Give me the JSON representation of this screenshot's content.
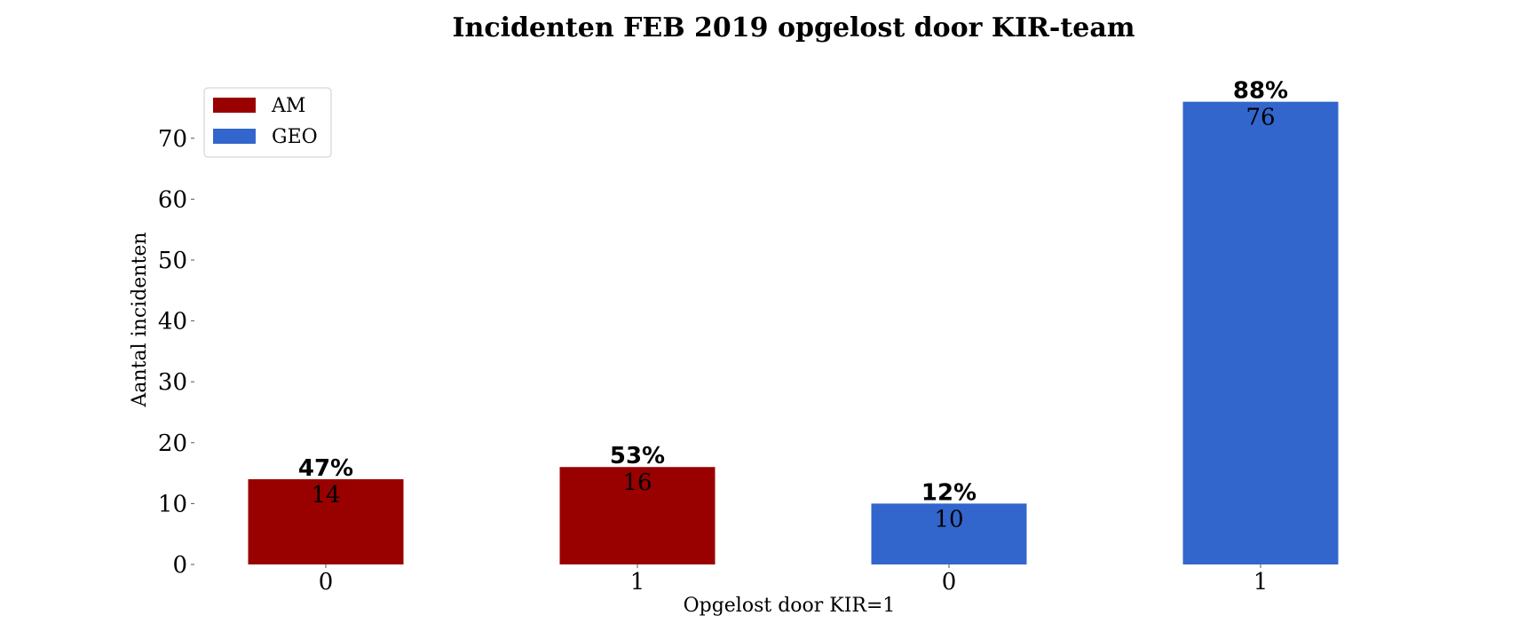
{
  "chart_data": {
    "type": "bar",
    "title": "Incidenten FEB 2019 opgelost door KIR-team",
    "xlabel": "Opgelost door KIR=1",
    "ylabel": "Aantal incidenten",
    "ylim": [
      0,
      80
    ],
    "yticks": [
      0,
      10,
      20,
      30,
      40,
      50,
      60,
      70
    ],
    "grid": false,
    "legend": {
      "placement": "top-left",
      "entries": [
        {
          "name": "AM",
          "color": "#990000"
        },
        {
          "name": "GEO",
          "color": "#3366cc"
        }
      ]
    },
    "bars": [
      {
        "category": "0",
        "group": "AM",
        "value": 14,
        "percent_label": "47%",
        "color": "#990000"
      },
      {
        "category": "1",
        "group": "AM",
        "value": 16,
        "percent_label": "53%",
        "color": "#990000"
      },
      {
        "category": "0",
        "group": "GEO",
        "value": 10,
        "percent_label": "12%",
        "color": "#3366cc"
      },
      {
        "category": "1",
        "group": "GEO",
        "value": 76,
        "percent_label": "88%",
        "color": "#3366cc"
      }
    ]
  }
}
